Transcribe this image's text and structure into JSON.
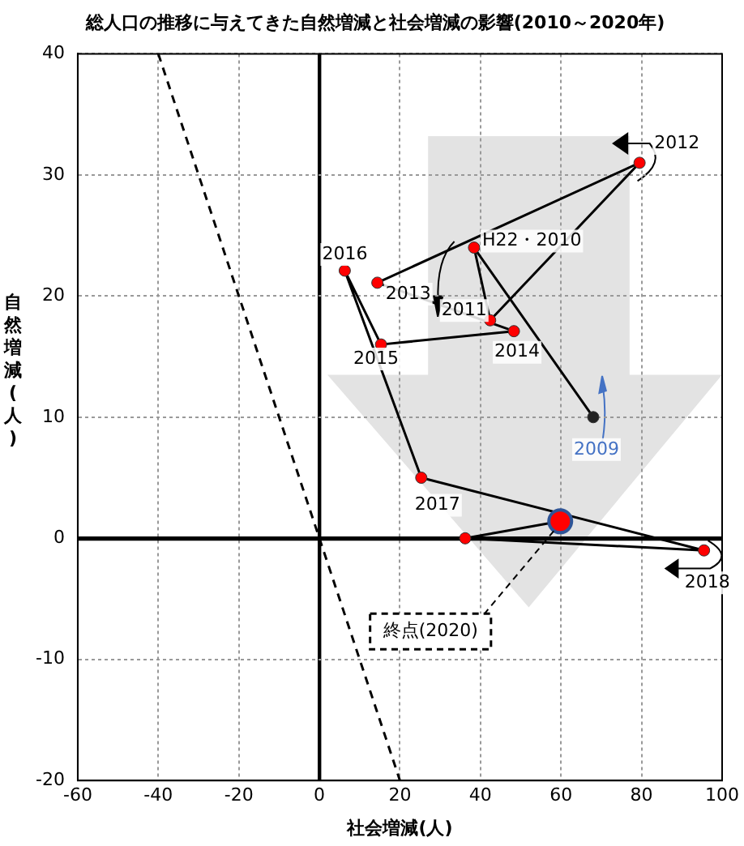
{
  "chart_data": {
    "type": "line",
    "title": "総人口の推移に与えてきた自然増減と社会増減の影響(2010～2020年)",
    "xlabel": "社会増減(人)",
    "ylabel": "自然増減(人)",
    "xlim": [
      -60,
      100
    ],
    "xticks": [
      -60,
      -40,
      -20,
      0,
      20,
      40,
      60,
      80,
      100
    ],
    "ylim": [
      -20,
      40
    ],
    "yticks": [
      -20,
      -10,
      0,
      10,
      20,
      30,
      40
    ],
    "grid": true,
    "legend": false,
    "marker": "circle",
    "series": [
      {
        "type": "line",
        "x": [
          -40,
          20
        ],
        "values": [
          40,
          -20
        ],
        "color": "#000000",
        "line_style": "dashed",
        "marker": "none"
      },
      {
        "type": "line",
        "x": [
          68,
          38.4,
          42.4,
          79.5,
          14.4,
          48.3,
          15.3,
          6.3,
          25.3,
          95.5,
          36.2,
          59.8
        ],
        "values": [
          10,
          24,
          18,
          31,
          21.1,
          17.1,
          16,
          22.1,
          5,
          -1,
          0,
          1.4
        ],
        "color": "#000000",
        "colors": [
          "#222222",
          "#ff0000",
          "#ff0000",
          "#ff0000",
          "#ff0000",
          "#ff0000",
          "#ff0000",
          "#ff0000",
          "#ff0000",
          "#ff0000",
          "#ff0000",
          "#ff0000"
        ]
      }
    ],
    "annotations": [
      {
        "text": "2009",
        "x": 68,
        "y": 10
      },
      {
        "text": "H22・2010",
        "x": 38.4,
        "y": 24
      },
      {
        "text": "2011",
        "x": 42.4,
        "y": 18
      },
      {
        "text": "2012",
        "x": 79.5,
        "y": 31
      },
      {
        "text": "2013",
        "x": 14.4,
        "y": 21.1
      },
      {
        "text": "2014",
        "x": 48.3,
        "y": 17.1
      },
      {
        "text": "2015",
        "x": 15.3,
        "y": 16
      },
      {
        "text": "2016",
        "x": 6.3,
        "y": 22.1
      },
      {
        "text": "2017",
        "x": 25.3,
        "y": 5
      },
      {
        "text": "2018",
        "x": 95.5,
        "y": -1
      },
      {
        "text": "終点(2020)",
        "x": 59.8,
        "y": 1.4
      }
    ]
  }
}
